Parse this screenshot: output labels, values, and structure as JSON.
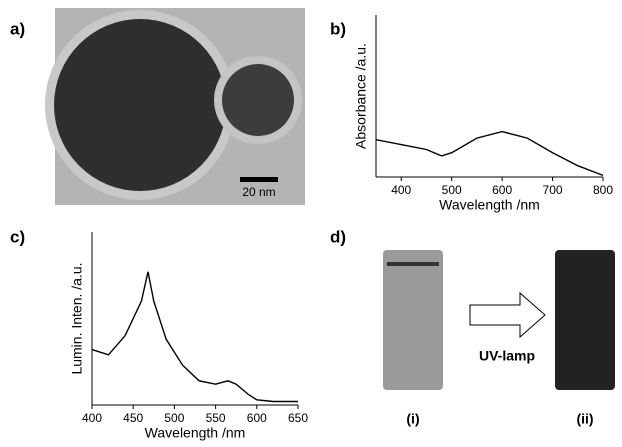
{
  "panels": {
    "a": "a)",
    "b": "b)",
    "c": "c)",
    "d": "d)"
  },
  "scale_bar": "20 nm",
  "photo": {
    "arrow_label": "UV-lamp",
    "left": "(i)",
    "right": "(ii)"
  },
  "chart_data": [
    {
      "type": "line",
      "xlabel": "Wavelength /nm",
      "ylabel": "Absorbance /a.u.",
      "x": [
        350,
        400,
        450,
        480,
        500,
        550,
        600,
        650,
        700,
        750,
        800
      ],
      "values": [
        0.23,
        0.2,
        0.17,
        0.13,
        0.15,
        0.24,
        0.28,
        0.24,
        0.15,
        0.07,
        0.01
      ],
      "color": "#000000",
      "xlim": [
        350,
        800
      ],
      "ylim": [
        0,
        1
      ],
      "xticks": [
        400,
        500,
        600,
        700,
        800
      ]
    },
    {
      "type": "line",
      "xlabel": "Wavelength /nm",
      "ylabel": "Lumin. Inten. /a.u.",
      "x": [
        400,
        420,
        440,
        460,
        468,
        475,
        490,
        510,
        530,
        550,
        565,
        575,
        590,
        600,
        620,
        650
      ],
      "values": [
        0.32,
        0.29,
        0.4,
        0.6,
        0.77,
        0.6,
        0.38,
        0.23,
        0.14,
        0.12,
        0.14,
        0.12,
        0.06,
        0.03,
        0.02,
        0.02
      ],
      "color": "#000000",
      "xlim": [
        400,
        650
      ],
      "ylim": [
        0,
        1
      ],
      "xticks": [
        400,
        450,
        500,
        550,
        600,
        650
      ]
    }
  ]
}
